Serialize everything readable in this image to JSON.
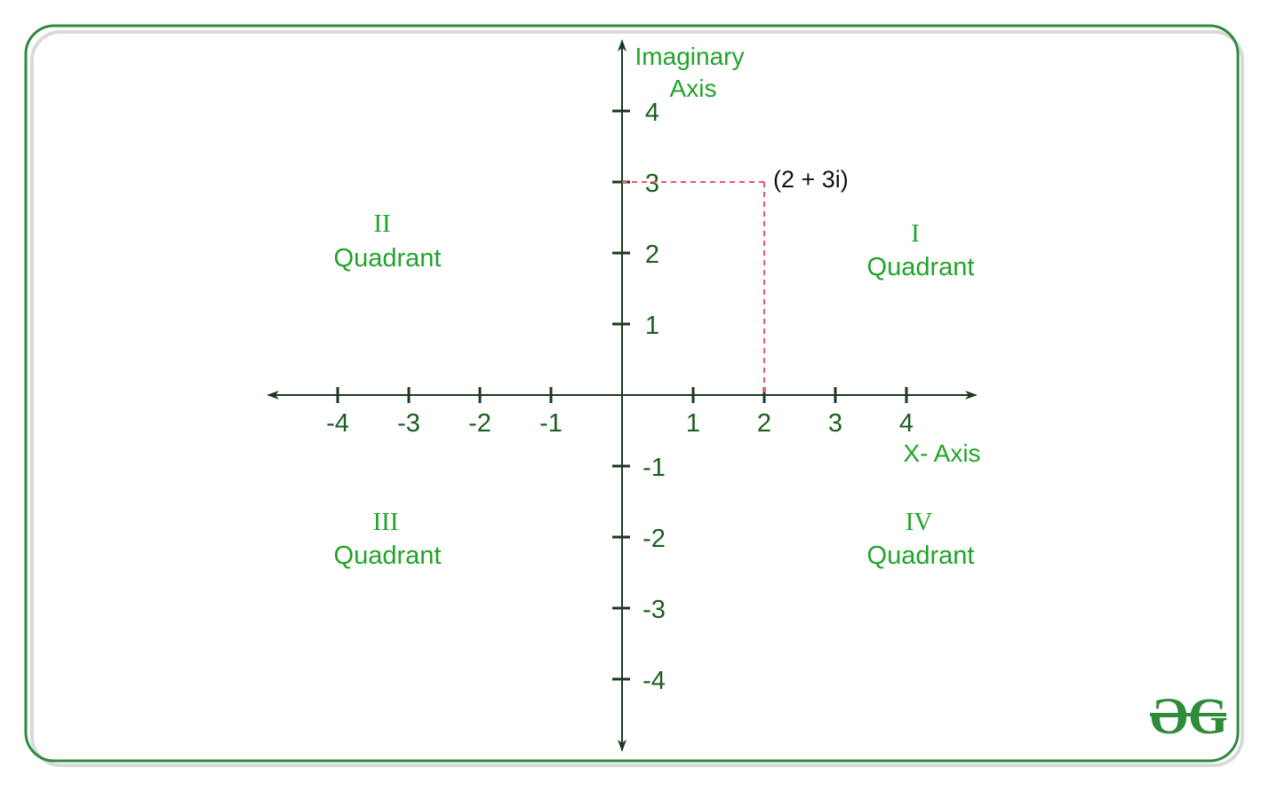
{
  "diagram": {
    "x_axis": {
      "title": "X- Axis",
      "ticks": [
        "-4",
        "-3",
        "-2",
        "-1",
        "1",
        "2",
        "3",
        "4"
      ]
    },
    "y_axis": {
      "title_line1": "Imaginary",
      "title_line2": "Axis",
      "ticks": [
        "4",
        "3",
        "2",
        "1",
        "-1",
        "-2",
        "-3",
        "-4"
      ]
    },
    "quadrants": [
      {
        "roman": "I",
        "word": "Quadrant"
      },
      {
        "roman": "II",
        "word": "Quadrant"
      },
      {
        "roman": "III",
        "word": "Quadrant"
      },
      {
        "roman": "IV",
        "word": "Quadrant"
      }
    ],
    "point": {
      "label": "(2 + 3i)",
      "re": 2,
      "im": 3
    },
    "colors": {
      "frame_border": "#2e8b3a",
      "axis": "#1b3a1f",
      "label_green": "#22a32a",
      "tick_label": "#1b5e20",
      "projection": "#e8586a"
    },
    "logo": "GfG"
  }
}
